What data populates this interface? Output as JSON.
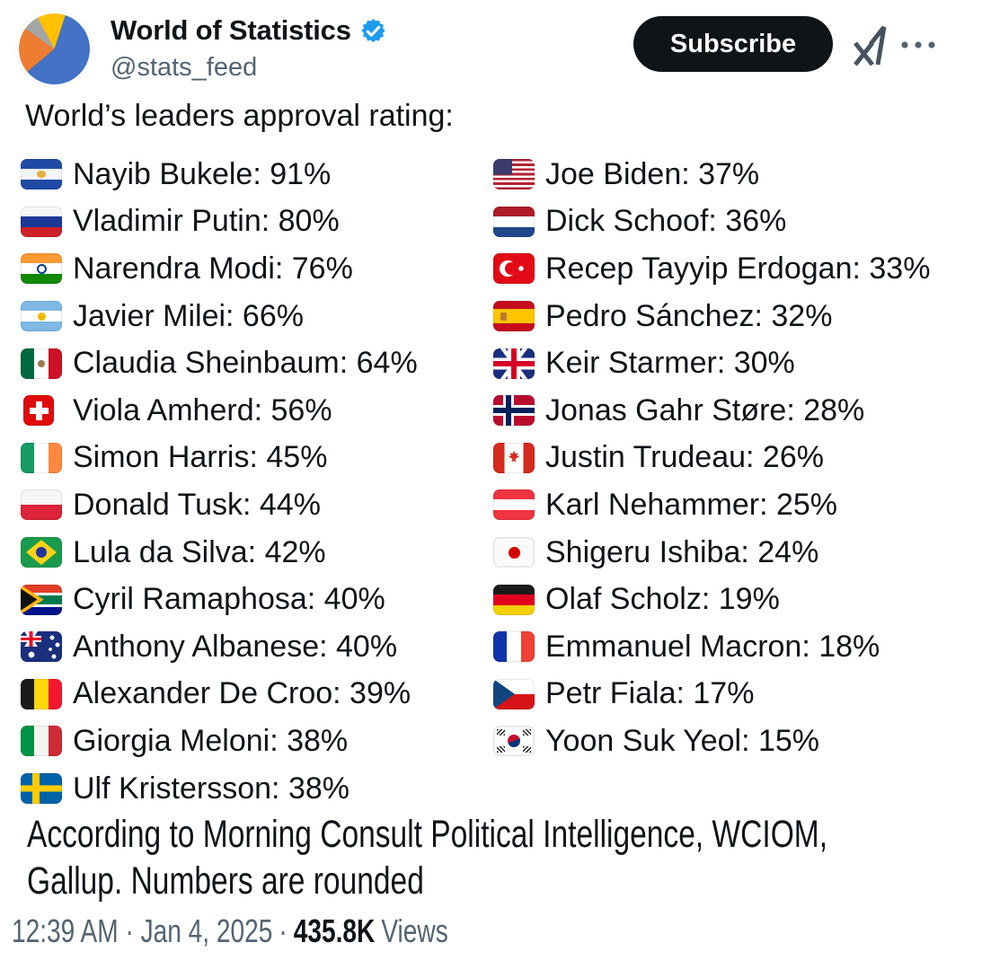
{
  "header": {
    "display_name": "World of Statistics",
    "handle": "@stats_feed",
    "subscribe_label": "Subscribe",
    "avatar": {
      "icon": "pie-chart-avatar",
      "slice_colors": [
        "#FFC000",
        "#4472C4",
        "#ED7D31",
        "#A5A5A5"
      ]
    },
    "verified_badge_color": "#1d9bf0"
  },
  "post": {
    "heading": "World’s leaders approval rating:",
    "columns": [
      {
        "rows": [
          {
            "flag": "el-salvador",
            "text": "Nayib Bukele: 91%"
          },
          {
            "flag": "russia",
            "text": "Vladimir Putin: 80%"
          },
          {
            "flag": "india",
            "text": "Narendra Modi: 76%"
          },
          {
            "flag": "argentina",
            "text": "Javier Milei: 66%"
          },
          {
            "flag": "mexico",
            "text": "Claudia Sheinbaum: 64%"
          },
          {
            "flag": "switzerland",
            "text": "Viola Amherd: 56%"
          },
          {
            "flag": "ireland",
            "text": "Simon Harris: 45%"
          },
          {
            "flag": "poland",
            "text": "Donald Tusk: 44%"
          },
          {
            "flag": "brazil",
            "text": "Lula da Silva: 42%"
          },
          {
            "flag": "south-africa",
            "text": "Cyril Ramaphosa: 40%"
          },
          {
            "flag": "australia",
            "text": "Anthony Albanese: 40%"
          },
          {
            "flag": "belgium",
            "text": "Alexander De Croo: 39%"
          },
          {
            "flag": "italy",
            "text": "Giorgia Meloni: 38%"
          },
          {
            "flag": "sweden",
            "text": "Ulf Kristersson: 38%"
          }
        ]
      },
      {
        "rows": [
          {
            "flag": "usa",
            "text": "Joe Biden: 37%"
          },
          {
            "flag": "netherlands",
            "text": "Dick Schoof: 36%"
          },
          {
            "flag": "turkey",
            "text": "Recep Tayyip Erdogan: 33%"
          },
          {
            "flag": "spain",
            "text": "Pedro Sánchez: 32%"
          },
          {
            "flag": "uk",
            "text": "Keir Starmer: 30%"
          },
          {
            "flag": "norway",
            "text": "Jonas Gahr Støre: 28%"
          },
          {
            "flag": "canada",
            "text": "Justin Trudeau: 26%"
          },
          {
            "flag": "austria",
            "text": "Karl Nehammer: 25%"
          },
          {
            "flag": "japan",
            "text": "Shigeru Ishiba: 24%"
          },
          {
            "flag": "germany",
            "text": "Olaf Scholz: 19%"
          },
          {
            "flag": "france",
            "text": "Emmanuel Macron: 18%"
          },
          {
            "flag": "czechia",
            "text": "Petr Fiala: 17%"
          },
          {
            "flag": "south-korea",
            "text": "Yoon Suk Yeol: 15%"
          }
        ]
      }
    ],
    "source_line1": "According to Morning Consult Political Intelligence, WCIOM,",
    "source_line2": "Gallup. Numbers are rounded",
    "timestamp": "12:39 AM · Jan 4, 2025",
    "views_separator": "·",
    "views_count": "435.8K",
    "views_label": "Views"
  },
  "colors": {
    "text_primary": "#0f1419",
    "text_secondary": "#536471",
    "verified_blue": "#1d9bf0",
    "subscribe_bg": "#0f1419",
    "background": "#ffffff"
  }
}
